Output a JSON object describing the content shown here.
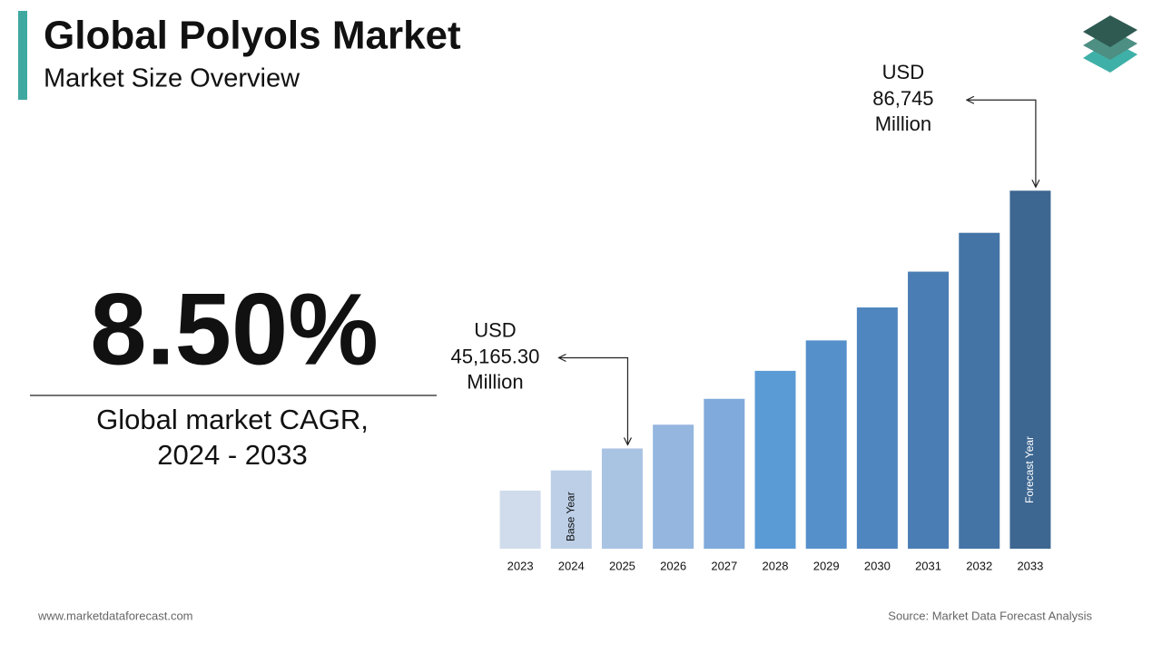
{
  "header": {
    "title": "Global Polyols Market",
    "subtitle": "Market Size Overview"
  },
  "highlight": {
    "value": "8.50%",
    "caption_lines": [
      "Global market CAGR,",
      "2024 - 2033"
    ]
  },
  "chart_data": {
    "type": "bar",
    "categories": [
      "2023",
      "2024",
      "2025",
      "2026",
      "2027",
      "2028",
      "2029",
      "2030",
      "2031",
      "2032",
      "2033"
    ],
    "values": [
      38366,
      41627,
      45165.3,
      49004,
      53170,
      57689,
      62593,
      67913,
      73686,
      79949,
      86745
    ],
    "value_labels": [
      null,
      null,
      "45,165.30",
      null,
      null,
      null,
      null,
      null,
      null,
      null,
      "86,745"
    ],
    "value_prefix": "USD",
    "value_unit": "Million",
    "bar_labels": [
      null,
      "Base Year",
      null,
      null,
      null,
      null,
      null,
      null,
      null,
      null,
      "Forecast Year"
    ],
    "colors": [
      "#d0dcec",
      "#bccfe7",
      "#a9c3e3",
      "#95b6df",
      "#80aadb",
      "#5b9bd5",
      "#5590cb",
      "#4f86c0",
      "#4a7db3",
      "#4474a6",
      "#3d6791"
    ],
    "ylim": [
      29000,
      90000
    ]
  },
  "footer": {
    "website": "www.marketdataforecast.com",
    "source": "Source: Market Data Forecast Analysis"
  }
}
